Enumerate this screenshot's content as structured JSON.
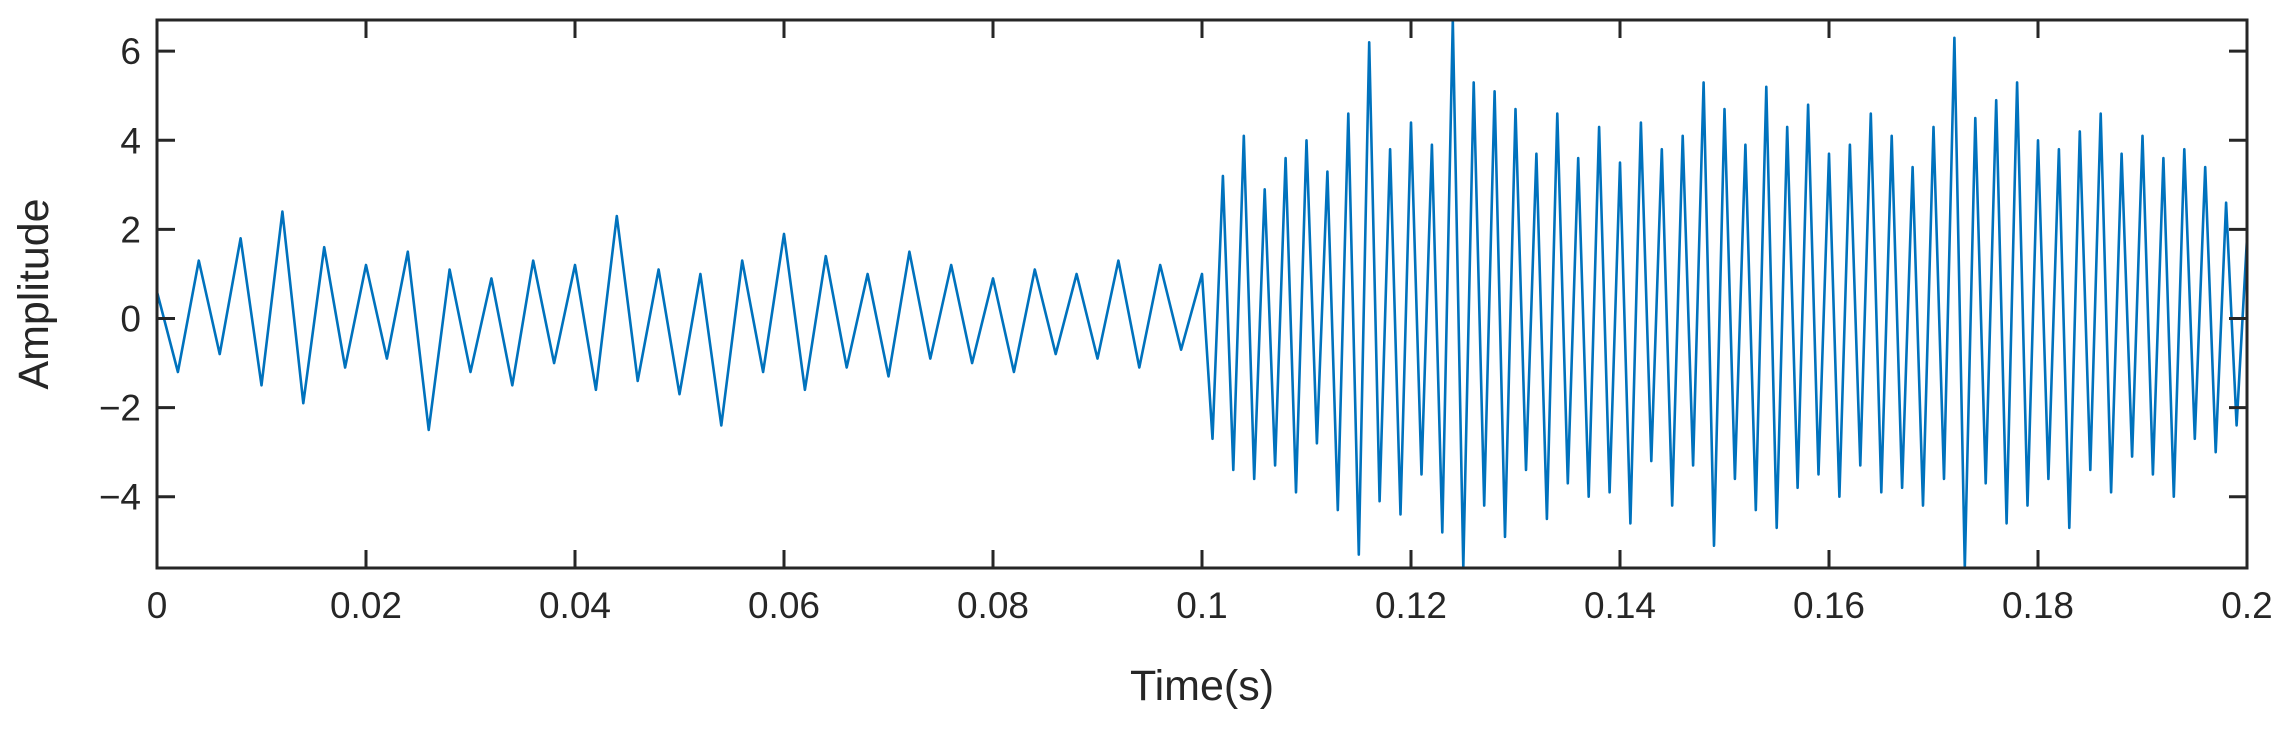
{
  "chart_data": {
    "type": "line",
    "title": "",
    "xlabel": "Time(s)",
    "ylabel": "Amplitude",
    "xlim": [
      0,
      0.2
    ],
    "ylim": [
      -5.6,
      6.7
    ],
    "xticks": [
      0,
      0.02,
      0.04,
      0.06,
      0.08,
      0.1,
      0.12,
      0.14,
      0.16,
      0.18,
      0.2
    ],
    "xtick_labels": [
      "0",
      "0.02",
      "0.04",
      "0.06",
      "0.08",
      "0.1",
      "0.12",
      "0.14",
      "0.16",
      "0.18",
      "0.2"
    ],
    "yticks": [
      -4,
      -2,
      0,
      2,
      4,
      6
    ],
    "ytick_labels": [
      "−4",
      "−2",
      "0",
      "2",
      "4",
      "6"
    ],
    "grid": false,
    "legend": "none",
    "line_color": "#0072BD",
    "series": [
      {
        "x": [
          0,
          0.002,
          0.004,
          0.006,
          0.008,
          0.01,
          0.012,
          0.014,
          0.016,
          0.018,
          0.02,
          0.022,
          0.024,
          0.026,
          0.028,
          0.03,
          0.032,
          0.034,
          0.036,
          0.038,
          0.04,
          0.042,
          0.044,
          0.046,
          0.048,
          0.05,
          0.052,
          0.054,
          0.056,
          0.058,
          0.06,
          0.062,
          0.064,
          0.066,
          0.068,
          0.07,
          0.072,
          0.074,
          0.076,
          0.078,
          0.08,
          0.082,
          0.084,
          0.086,
          0.088,
          0.09,
          0.092,
          0.094,
          0.096,
          0.098,
          0.1,
          0.101,
          0.102,
          0.103,
          0.104,
          0.105,
          0.106,
          0.107,
          0.108,
          0.109,
          0.11,
          0.111,
          0.112,
          0.113,
          0.114,
          0.115,
          0.116,
          0.117,
          0.118,
          0.119,
          0.12,
          0.121,
          0.122,
          0.123,
          0.124,
          0.125,
          0.126,
          0.127,
          0.128,
          0.129,
          0.13,
          0.131,
          0.132,
          0.133,
          0.134,
          0.135,
          0.136,
          0.137,
          0.138,
          0.139,
          0.14,
          0.141,
          0.142,
          0.143,
          0.144,
          0.145,
          0.146,
          0.147,
          0.148,
          0.149,
          0.15,
          0.151,
          0.152,
          0.153,
          0.154,
          0.155,
          0.156,
          0.157,
          0.158,
          0.159,
          0.16,
          0.161,
          0.162,
          0.163,
          0.164,
          0.165,
          0.166,
          0.167,
          0.168,
          0.169,
          0.17,
          0.171,
          0.172,
          0.173,
          0.174,
          0.175,
          0.176,
          0.177,
          0.178,
          0.179,
          0.18,
          0.181,
          0.182,
          0.183,
          0.184,
          0.185,
          0.186,
          0.187,
          0.188,
          0.189,
          0.19,
          0.191,
          0.192,
          0.193,
          0.194,
          0.195,
          0.196,
          0.197,
          0.198,
          0.199,
          0.2
        ],
        "values": [
          0.6,
          -1.2,
          1.3,
          -0.8,
          1.8,
          -1.5,
          2.4,
          -1.9,
          1.6,
          -1.1,
          1.2,
          -0.9,
          1.5,
          -2.5,
          1.1,
          -1.2,
          0.9,
          -1.5,
          1.3,
          -1.0,
          1.2,
          -1.6,
          2.3,
          -1.4,
          1.1,
          -1.7,
          1.0,
          -2.4,
          1.3,
          -1.2,
          1.9,
          -1.6,
          1.4,
          -1.1,
          1.0,
          -1.3,
          1.5,
          -0.9,
          1.2,
          -1.0,
          0.9,
          -1.2,
          1.1,
          -0.8,
          1.0,
          -0.9,
          1.3,
          -1.1,
          1.2,
          -0.7,
          1.0,
          -2.7,
          3.2,
          -3.4,
          4.1,
          -3.6,
          2.9,
          -3.3,
          3.6,
          -3.9,
          4.0,
          -2.8,
          3.3,
          -4.3,
          4.6,
          -5.3,
          6.2,
          -4.1,
          3.8,
          -4.4,
          4.4,
          -3.5,
          3.9,
          -4.8,
          6.7,
          -5.6,
          5.3,
          -4.2,
          5.1,
          -4.9,
          4.7,
          -3.4,
          3.7,
          -4.5,
          4.6,
          -3.7,
          3.6,
          -4.0,
          4.3,
          -3.9,
          3.5,
          -4.6,
          4.4,
          -3.2,
          3.8,
          -4.2,
          4.1,
          -3.3,
          5.3,
          -5.1,
          4.7,
          -3.6,
          3.9,
          -4.3,
          5.2,
          -4.7,
          4.3,
          -3.8,
          4.8,
          -3.5,
          3.7,
          -4.0,
          3.9,
          -3.3,
          4.6,
          -3.9,
          4.1,
          -3.8,
          3.4,
          -4.2,
          4.3,
          -3.6,
          6.3,
          -5.6,
          4.5,
          -3.7,
          4.9,
          -4.6,
          5.3,
          -4.2,
          4.0,
          -3.6,
          3.8,
          -4.7,
          4.2,
          -3.4,
          4.6,
          -3.9,
          3.7,
          -3.1,
          4.1,
          -3.5,
          3.6,
          -4.0,
          3.8,
          -2.7,
          3.4,
          -3.0,
          2.6,
          -2.4,
          1.8
        ]
      }
    ]
  }
}
